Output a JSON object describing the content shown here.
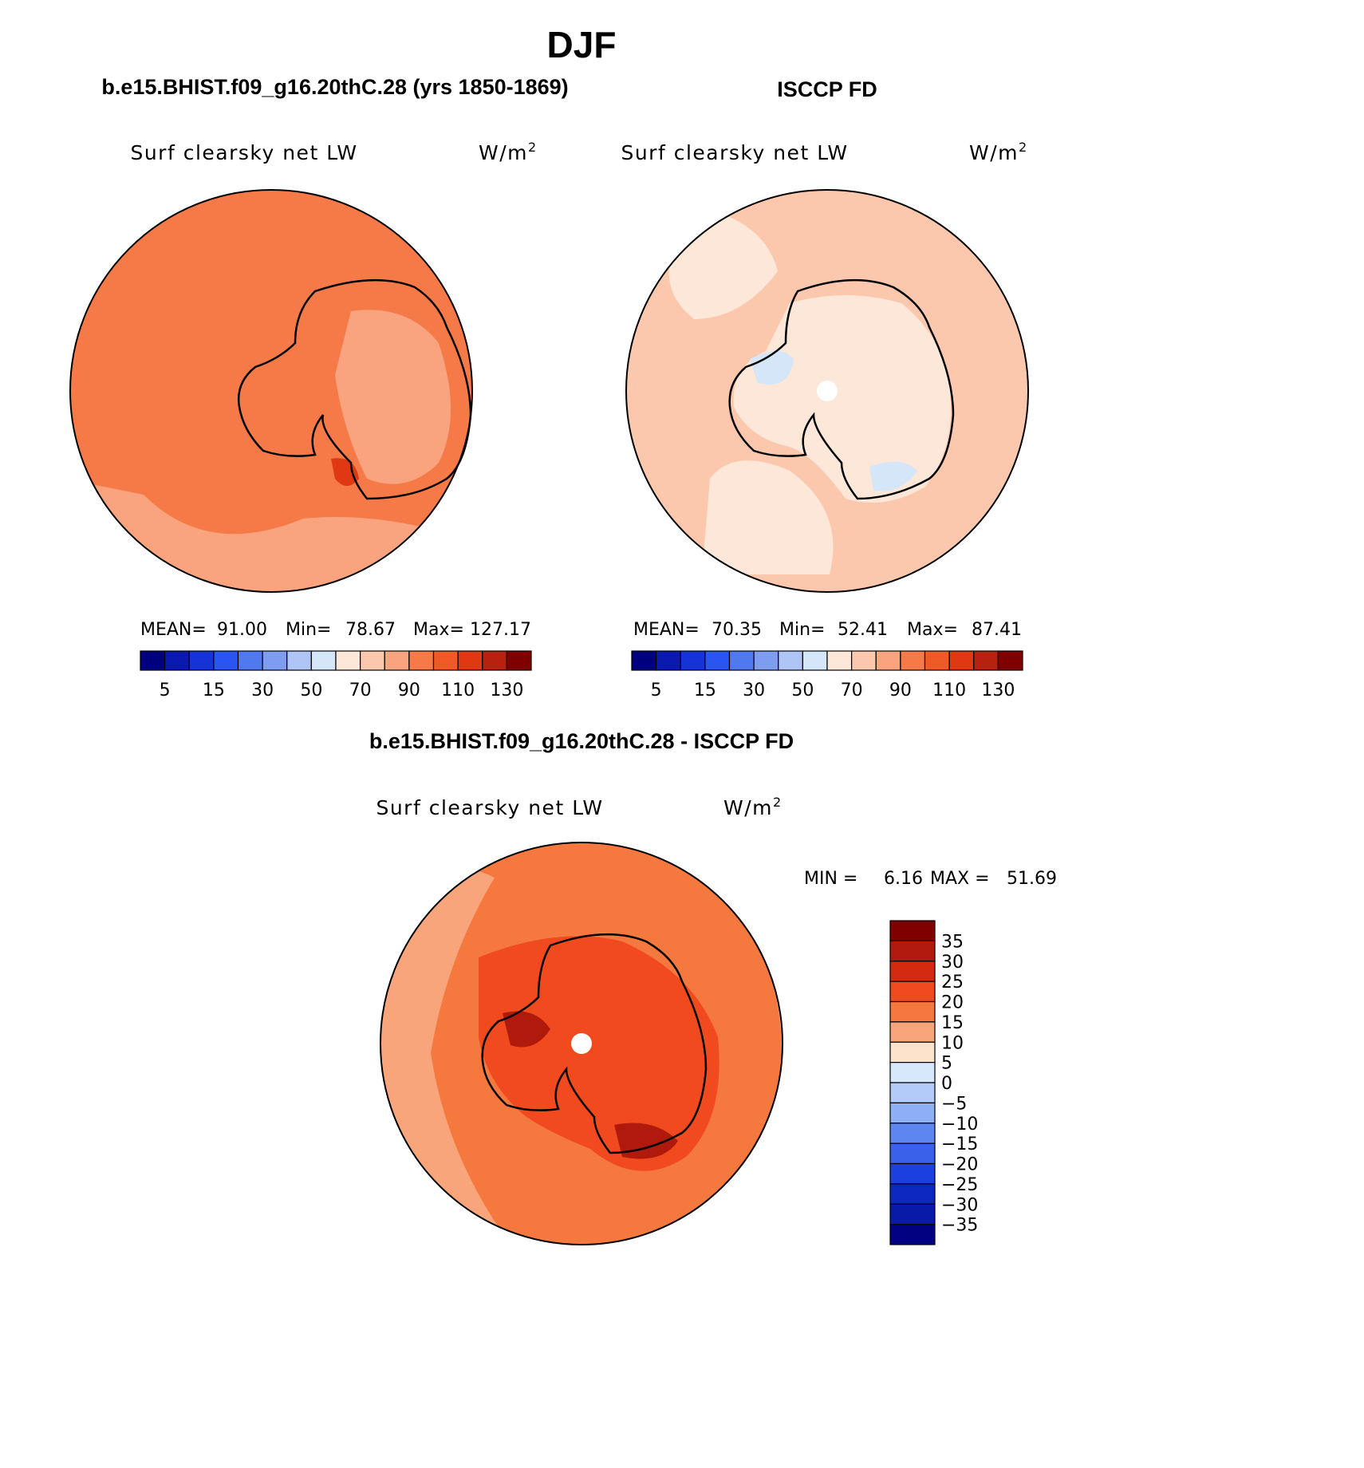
{
  "figure": {
    "season": "DJF",
    "model_title": "b.e15.BHIST.f09_g16.20thC.28 (yrs 1850-1869)",
    "obs_title": "ISCCP FD",
    "diff_title": "b.e15.BHIST.f09_g16.20thC.28 - ISCCP FD"
  },
  "chart_data": [
    {
      "type": "heatmap",
      "projection": "south-polar-stereographic",
      "panel": "model",
      "variable": "Surf clearsky net LW",
      "units_base": "W/m",
      "units_exp": "2",
      "stats": {
        "mean_label": "MEAN=",
        "mean": "91.00",
        "min_label": "Min=",
        "min": "78.67",
        "max_label": "Max=",
        "max": "127.17"
      },
      "colorbar_ticks": [
        "5",
        "15",
        "30",
        "50",
        "70",
        "90",
        "110",
        "130"
      ],
      "colorbar_levels": [
        0,
        5,
        10,
        15,
        20,
        30,
        40,
        50,
        60,
        70,
        80,
        90,
        100,
        110,
        120,
        130
      ],
      "colorbar_orientation": "horizontal",
      "colors": [
        "#00007f",
        "#0a1ab0",
        "#1633d8",
        "#2b55f0",
        "#5079f0",
        "#7e9cf0",
        "#afc5f5",
        "#d4e6f8",
        "#fde7d8",
        "#fcc8ad",
        "#f9a47e",
        "#f57a48",
        "#f05a26",
        "#e03812",
        "#b82010",
        "#800000"
      ]
    },
    {
      "type": "heatmap",
      "projection": "south-polar-stereographic",
      "panel": "observations",
      "variable": "Surf clearsky net LW",
      "units_base": "W/m",
      "units_exp": "2",
      "stats": {
        "mean_label": "MEAN=",
        "mean": "70.35",
        "min_label": "Min=",
        "min": "52.41",
        "max_label": "Max=",
        "max": "87.41"
      },
      "colorbar_ticks": [
        "5",
        "15",
        "30",
        "50",
        "70",
        "90",
        "110",
        "130"
      ],
      "colorbar_orientation": "horizontal"
    },
    {
      "type": "heatmap",
      "projection": "south-polar-stereographic",
      "panel": "difference",
      "variable": "Surf clearsky net LW",
      "units_base": "W/m",
      "units_exp": "2",
      "stats": {
        "min_label": "MIN =",
        "min": "6.16",
        "max_label": "MAX =",
        "max": "51.69"
      },
      "colorbar_ticks": [
        "35",
        "30",
        "25",
        "20",
        "15",
        "10",
        "5",
        "0",
        "−5",
        "−10",
        "−15",
        "−20",
        "−25",
        "−30",
        "−35"
      ],
      "colorbar_orientation": "vertical",
      "colors": [
        "#800000",
        "#b01a0c",
        "#d42a10",
        "#f04a1e",
        "#f5783e",
        "#f9a57c",
        "#fde3cc",
        "#d8e8fb",
        "#b3cbf8",
        "#8daff4",
        "#5d86f0",
        "#3a61ea",
        "#1a40de",
        "#0c28c0",
        "#0a1aa8",
        "#000080"
      ]
    }
  ]
}
